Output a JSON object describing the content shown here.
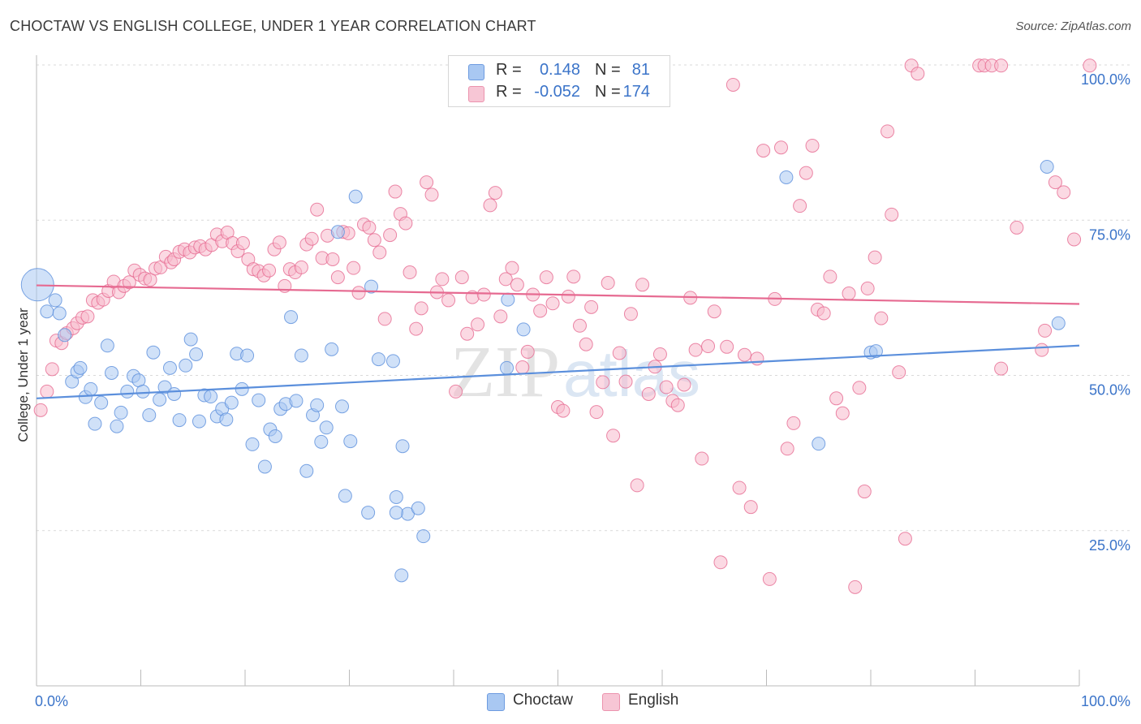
{
  "header": {
    "title": "CHOCTAW VS ENGLISH COLLEGE, UNDER 1 YEAR CORRELATION CHART",
    "source": "Source: ZipAtlas.com"
  },
  "legend": {
    "rows": [
      {
        "r_label": "R =",
        "r_value": "0.148",
        "n_label": "N =",
        "n_value": "81",
        "color": "#a9c8f2"
      },
      {
        "r_label": "R =",
        "r_value": "-0.052",
        "n_label": "N =",
        "n_value": "174",
        "color": "#f7b9cc"
      }
    ],
    "bottom": [
      {
        "label": "Choctaw",
        "color": "#a9c8f2"
      },
      {
        "label": "English",
        "color": "#f7b9cc"
      }
    ]
  },
  "watermark": {
    "part1": "ZIP",
    "part2": "atlas"
  },
  "chart_data": {
    "type": "scatter",
    "title": "CHOCTAW VS ENGLISH COLLEGE, UNDER 1 YEAR CORRELATION CHART",
    "xlabel": "",
    "ylabel": "College, Under 1 year",
    "xlim": [
      0,
      100
    ],
    "ylim": [
      0,
      100
    ],
    "x_tick_labels": [
      "0.0%",
      "100.0%"
    ],
    "y_ticks": [
      25,
      50,
      75,
      100
    ],
    "y_tick_labels": [
      "25.0%",
      "50.0%",
      "75.0%",
      "100.0%"
    ],
    "grid": "horizontal dashed",
    "legend_position": "top-center",
    "series": [
      {
        "name": "Choctaw",
        "color": "#5b8fdc",
        "fill": "#a9c8f2",
        "r": 0.148,
        "n": 81,
        "trend": [
          [
            0,
            46.3
          ],
          [
            100,
            54.8
          ]
        ],
        "points": [
          [
            0.1,
            64.6
          ],
          [
            1.0,
            60.3
          ],
          [
            1.8,
            62.1
          ],
          [
            2.2,
            60.0
          ],
          [
            2.7,
            56.5
          ],
          [
            3.4,
            49.0
          ],
          [
            3.9,
            50.6
          ],
          [
            4.2,
            51.2
          ],
          [
            4.7,
            46.5
          ],
          [
            5.2,
            47.8
          ],
          [
            5.6,
            42.2
          ],
          [
            6.2,
            45.6
          ],
          [
            6.8,
            54.8
          ],
          [
            7.2,
            50.4
          ],
          [
            7.7,
            41.8
          ],
          [
            8.1,
            44.0
          ],
          [
            8.7,
            47.4
          ],
          [
            9.3,
            49.9
          ],
          [
            9.8,
            49.2
          ],
          [
            10.2,
            47.4
          ],
          [
            10.8,
            43.6
          ],
          [
            11.2,
            53.7
          ],
          [
            11.8,
            46.1
          ],
          [
            12.3,
            48.1
          ],
          [
            12.8,
            51.2
          ],
          [
            13.2,
            47.0
          ],
          [
            13.7,
            42.8
          ],
          [
            14.3,
            51.6
          ],
          [
            14.8,
            55.8
          ],
          [
            15.3,
            53.4
          ],
          [
            15.6,
            42.6
          ],
          [
            16.1,
            46.8
          ],
          [
            16.7,
            46.6
          ],
          [
            17.3,
            43.4
          ],
          [
            17.8,
            44.6
          ],
          [
            18.2,
            42.9
          ],
          [
            18.7,
            45.6
          ],
          [
            19.2,
            53.5
          ],
          [
            19.7,
            47.8
          ],
          [
            20.2,
            53.2
          ],
          [
            20.7,
            38.9
          ],
          [
            21.3,
            46.0
          ],
          [
            21.9,
            35.3
          ],
          [
            22.4,
            41.3
          ],
          [
            22.9,
            40.2
          ],
          [
            23.4,
            44.6
          ],
          [
            23.9,
            45.4
          ],
          [
            24.4,
            59.4
          ],
          [
            24.9,
            45.9
          ],
          [
            25.4,
            53.2
          ],
          [
            25.9,
            34.6
          ],
          [
            26.5,
            43.6
          ],
          [
            26.9,
            45.2
          ],
          [
            27.3,
            39.3
          ],
          [
            27.8,
            41.6
          ],
          [
            28.3,
            54.2
          ],
          [
            28.9,
            73.1
          ],
          [
            29.3,
            45.0
          ],
          [
            29.6,
            30.6
          ],
          [
            30.1,
            39.4
          ],
          [
            30.6,
            78.8
          ],
          [
            31.8,
            27.9
          ],
          [
            32.1,
            64.3
          ],
          [
            32.8,
            52.6
          ],
          [
            34.2,
            52.3
          ],
          [
            34.5,
            30.4
          ],
          [
            35.1,
            38.6
          ],
          [
            35.6,
            27.7
          ],
          [
            36.6,
            28.6
          ],
          [
            35.0,
            17.8
          ],
          [
            37.1,
            24.1
          ],
          [
            34.5,
            27.9
          ],
          [
            45.1,
            51.2
          ],
          [
            45.2,
            62.2
          ],
          [
            46.7,
            57.4
          ],
          [
            71.9,
            81.9
          ],
          [
            75.0,
            39.0
          ],
          [
            80.0,
            53.7
          ],
          [
            80.5,
            53.9
          ],
          [
            96.9,
            83.6
          ],
          [
            98.0,
            58.4
          ]
        ]
      },
      {
        "name": "English",
        "color": "#e66a91",
        "fill": "#f7b9cc",
        "r": -0.052,
        "n": 174,
        "trend": [
          [
            0,
            64.5
          ],
          [
            100,
            61.5
          ]
        ],
        "points": [
          [
            0.4,
            44.4
          ],
          [
            1.0,
            47.4
          ],
          [
            1.5,
            51.0
          ],
          [
            1.9,
            55.6
          ],
          [
            2.4,
            55.2
          ],
          [
            2.9,
            56.8
          ],
          [
            3.5,
            57.6
          ],
          [
            3.9,
            58.4
          ],
          [
            4.4,
            59.3
          ],
          [
            4.9,
            59.5
          ],
          [
            5.4,
            62.1
          ],
          [
            5.9,
            61.7
          ],
          [
            6.4,
            62.2
          ],
          [
            6.9,
            63.6
          ],
          [
            7.4,
            65.1
          ],
          [
            7.9,
            63.4
          ],
          [
            8.4,
            64.4
          ],
          [
            8.9,
            65.0
          ],
          [
            9.4,
            66.9
          ],
          [
            9.9,
            66.2
          ],
          [
            10.4,
            65.6
          ],
          [
            10.9,
            65.4
          ],
          [
            11.4,
            67.2
          ],
          [
            11.9,
            67.4
          ],
          [
            12.4,
            69.1
          ],
          [
            12.9,
            68.2
          ],
          [
            13.2,
            68.7
          ],
          [
            13.7,
            69.9
          ],
          [
            14.2,
            70.3
          ],
          [
            14.7,
            69.8
          ],
          [
            15.2,
            70.6
          ],
          [
            15.7,
            70.8
          ],
          [
            16.2,
            70.3
          ],
          [
            16.8,
            71.0
          ],
          [
            17.3,
            72.7
          ],
          [
            17.8,
            71.6
          ],
          [
            18.3,
            73.0
          ],
          [
            18.8,
            71.3
          ],
          [
            19.3,
            70.0
          ],
          [
            19.8,
            71.3
          ],
          [
            20.3,
            68.7
          ],
          [
            20.8,
            67.1
          ],
          [
            21.3,
            66.8
          ],
          [
            21.8,
            66.1
          ],
          [
            22.3,
            66.9
          ],
          [
            22.8,
            70.3
          ],
          [
            23.3,
            71.4
          ],
          [
            23.8,
            64.4
          ],
          [
            24.3,
            67.1
          ],
          [
            24.8,
            66.6
          ],
          [
            25.4,
            67.4
          ],
          [
            25.9,
            71.1
          ],
          [
            26.4,
            72.0
          ],
          [
            26.9,
            76.7
          ],
          [
            27.4,
            68.9
          ],
          [
            27.9,
            72.5
          ],
          [
            28.4,
            68.7
          ],
          [
            28.9,
            65.8
          ],
          [
            29.4,
            73.1
          ],
          [
            29.9,
            72.9
          ],
          [
            30.4,
            67.3
          ],
          [
            30.9,
            63.3
          ],
          [
            31.4,
            74.3
          ],
          [
            31.9,
            73.8
          ],
          [
            32.4,
            71.8
          ],
          [
            32.9,
            69.8
          ],
          [
            33.4,
            59.1
          ],
          [
            33.9,
            72.6
          ],
          [
            34.4,
            79.6
          ],
          [
            34.9,
            76.0
          ],
          [
            35.4,
            74.5
          ],
          [
            35.8,
            66.6
          ],
          [
            36.4,
            57.5
          ],
          [
            36.9,
            60.8
          ],
          [
            37.4,
            81.1
          ],
          [
            37.9,
            79.1
          ],
          [
            38.4,
            63.4
          ],
          [
            38.9,
            65.5
          ],
          [
            39.5,
            62.1
          ],
          [
            40.2,
            47.4
          ],
          [
            40.8,
            65.8
          ],
          [
            41.3,
            56.7
          ],
          [
            41.8,
            62.6
          ],
          [
            42.3,
            58.2
          ],
          [
            42.9,
            63.0
          ],
          [
            43.5,
            77.4
          ],
          [
            44.0,
            79.4
          ],
          [
            44.5,
            59.5
          ],
          [
            45.0,
            65.5
          ],
          [
            45.6,
            67.3
          ],
          [
            46.1,
            64.6
          ],
          [
            46.6,
            51.3
          ],
          [
            47.1,
            53.8
          ],
          [
            47.6,
            63.0
          ],
          [
            48.3,
            60.4
          ],
          [
            48.9,
            65.8
          ],
          [
            49.5,
            61.6
          ],
          [
            50.0,
            44.9
          ],
          [
            50.5,
            44.3
          ],
          [
            51.0,
            62.7
          ],
          [
            51.5,
            65.9
          ],
          [
            52.1,
            58.0
          ],
          [
            52.7,
            55.0
          ],
          [
            53.2,
            61.0
          ],
          [
            53.7,
            44.1
          ],
          [
            54.3,
            48.9
          ],
          [
            54.8,
            64.9
          ],
          [
            55.3,
            40.3
          ],
          [
            55.9,
            53.6
          ],
          [
            56.5,
            49.0
          ],
          [
            57.0,
            59.9
          ],
          [
            57.6,
            32.3
          ],
          [
            58.1,
            64.6
          ],
          [
            58.7,
            47.0
          ],
          [
            59.3,
            51.4
          ],
          [
            59.8,
            53.4
          ],
          [
            60.4,
            48.1
          ],
          [
            61.0,
            45.9
          ],
          [
            61.5,
            45.2
          ],
          [
            62.1,
            48.5
          ],
          [
            62.7,
            62.5
          ],
          [
            63.2,
            54.1
          ],
          [
            63.8,
            36.6
          ],
          [
            64.4,
            54.7
          ],
          [
            65.0,
            60.3
          ],
          [
            65.6,
            19.9
          ],
          [
            66.2,
            54.6
          ],
          [
            66.8,
            96.8
          ],
          [
            67.4,
            31.9
          ],
          [
            67.9,
            53.3
          ],
          [
            68.5,
            28.8
          ],
          [
            69.1,
            52.7
          ],
          [
            69.7,
            86.2
          ],
          [
            70.3,
            17.2
          ],
          [
            70.8,
            62.3
          ],
          [
            71.4,
            86.7
          ],
          [
            72.0,
            38.2
          ],
          [
            72.6,
            42.3
          ],
          [
            73.2,
            77.3
          ],
          [
            73.8,
            82.6
          ],
          [
            74.4,
            87.0
          ],
          [
            74.9,
            60.6
          ],
          [
            75.5,
            60.0
          ],
          [
            76.1,
            65.9
          ],
          [
            76.7,
            46.3
          ],
          [
            77.3,
            43.9
          ],
          [
            77.9,
            63.2
          ],
          [
            78.5,
            15.9
          ],
          [
            78.9,
            48.0
          ],
          [
            79.4,
            31.3
          ],
          [
            79.7,
            64.0
          ],
          [
            80.4,
            69.0
          ],
          [
            81.0,
            59.2
          ],
          [
            81.6,
            89.3
          ],
          [
            82.0,
            75.9
          ],
          [
            82.7,
            50.5
          ],
          [
            83.3,
            23.7
          ],
          [
            83.9,
            99.9
          ],
          [
            84.5,
            98.6
          ],
          [
            90.4,
            99.9
          ],
          [
            90.9,
            99.9
          ],
          [
            91.6,
            99.9
          ],
          [
            92.5,
            99.9
          ],
          [
            92.5,
            51.1
          ],
          [
            94.0,
            73.8
          ],
          [
            96.4,
            54.1
          ],
          [
            96.7,
            57.2
          ],
          [
            97.7,
            81.1
          ],
          [
            98.5,
            79.5
          ],
          [
            99.5,
            71.9
          ],
          [
            101.0,
            99.9
          ]
        ]
      }
    ]
  }
}
